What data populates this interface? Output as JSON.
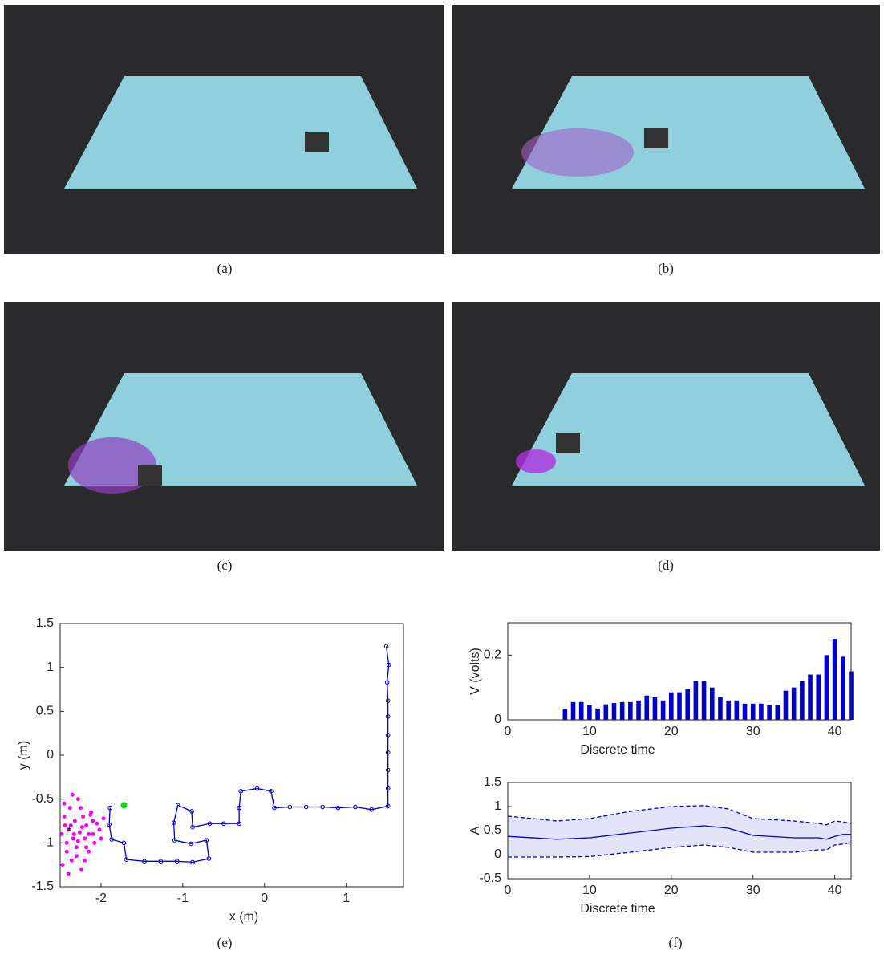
{
  "captions": [
    "(a)",
    "(b)",
    "(c)",
    "(d)",
    "(e)",
    "(f)"
  ],
  "chart_data": [
    {
      "type": "line",
      "x_label": "x (m)",
      "y_label": "y (m)",
      "xlim": [
        -2.5,
        1.7
      ],
      "ylim": [
        -1.5,
        1.5
      ],
      "xticks": [
        -2,
        -1,
        0,
        1
      ],
      "yticks": [
        -1.5,
        -1,
        -0.5,
        0,
        0.5,
        1,
        1.5
      ],
      "series": [
        {
          "style": "dots",
          "color": "#ff00ff",
          "x": [
            -2.48,
            -2.45,
            -2.42,
            -2.4,
            -2.38,
            -2.36,
            -2.34,
            -2.32,
            -2.3,
            -2.28,
            -2.26,
            -2.24,
            -2.22,
            -2.2,
            -2.18,
            -2.15,
            -2.12,
            -2.1,
            -2.08,
            -2.05,
            -2.02,
            -2.0,
            -1.97,
            -2.45,
            -2.4,
            -2.35,
            -2.3,
            -2.25,
            -2.2,
            -2.15,
            -2.1,
            -2.42,
            -2.37,
            -2.33,
            -2.28,
            -2.23,
            -2.18,
            -2.13,
            -2.47,
            -2.44
          ],
          "values": [
            -0.9,
            -0.7,
            -1.1,
            -0.85,
            -0.6,
            -1.2,
            -0.95,
            -0.75,
            -1.05,
            -0.5,
            -0.88,
            -1.3,
            -0.7,
            -0.95,
            -0.8,
            -1.1,
            -0.65,
            -0.9,
            -1.0,
            -0.78,
            -0.85,
            -0.95,
            -0.72,
            -0.55,
            -1.35,
            -0.45,
            -1.15,
            -0.6,
            -1.2,
            -0.9,
            -0.75,
            -1.0,
            -0.8,
            -0.9,
            -0.98,
            -0.82,
            -1.05,
            -0.68,
            -1.25,
            -0.8
          ]
        },
        {
          "style": "line-marker",
          "color": "#0000cc",
          "x": [
            1.49,
            1.52,
            1.5,
            1.51,
            1.51,
            1.51,
            1.51,
            1.51,
            1.51,
            1.51,
            1.31,
            1.11,
            0.9,
            0.71,
            0.51,
            0.31,
            0.12,
            0.08,
            -0.09,
            -0.29,
            -0.31,
            -0.31,
            -0.5,
            -0.67,
            -0.88,
            -0.89,
            -1.06,
            -1.11,
            -1.1,
            -0.9,
            -0.71,
            -0.68,
            -0.88,
            -1.07,
            -1.27,
            -1.47,
            -1.69,
            -1.72,
            -1.87,
            -1.9,
            -1.89
          ],
          "values": [
            1.24,
            1.03,
            0.83,
            0.62,
            0.44,
            0.23,
            0.03,
            -0.17,
            -0.38,
            -0.58,
            -0.62,
            -0.59,
            -0.6,
            -0.59,
            -0.59,
            -0.59,
            -0.6,
            -0.41,
            -0.38,
            -0.41,
            -0.6,
            -0.78,
            -0.78,
            -0.78,
            -0.82,
            -0.64,
            -0.57,
            -0.77,
            -0.97,
            -1.01,
            -0.97,
            -1.18,
            -1.22,
            -1.21,
            -1.21,
            -1.21,
            -1.19,
            -1.0,
            -0.96,
            -0.79,
            -0.6
          ]
        },
        {
          "style": "star",
          "color": "#000000",
          "x": [
            -2.39
          ],
          "values": [
            -0.86
          ]
        },
        {
          "style": "dot",
          "color": "#00dd00",
          "x": [
            -1.72
          ],
          "values": [
            -0.57
          ]
        }
      ]
    },
    {
      "type": "bar",
      "y_label": "V (volts)",
      "x_label": "Discrete time",
      "color": "#0000cc",
      "xlim": [
        0,
        42
      ],
      "ylim": [
        0,
        0.3
      ],
      "xticks": [
        0,
        10,
        20,
        30,
        40
      ],
      "yticks": [
        0,
        0.2
      ],
      "x": [
        1,
        2,
        3,
        4,
        5,
        6,
        7,
        8,
        9,
        10,
        11,
        12,
        13,
        14,
        15,
        16,
        17,
        18,
        19,
        20,
        21,
        22,
        23,
        24,
        25,
        26,
        27,
        28,
        29,
        30,
        31,
        32,
        33,
        34,
        35,
        36,
        37,
        38,
        39,
        40,
        41,
        42
      ],
      "values": [
        0,
        0,
        0,
        0,
        0,
        0,
        0.035,
        0.055,
        0.055,
        0.045,
        0.035,
        0.048,
        0.052,
        0.055,
        0.055,
        0.06,
        0.075,
        0.07,
        0.06,
        0.085,
        0.085,
        0.095,
        0.12,
        0.12,
        0.1,
        0.07,
        0.06,
        0.06,
        0.05,
        0.05,
        0.05,
        0.045,
        0.045,
        0.09,
        0.1,
        0.12,
        0.14,
        0.14,
        0.2,
        0.25,
        0.195,
        0.15
      ]
    },
    {
      "type": "line",
      "y_label": "A",
      "x_label": "Discrete time",
      "band_color": "#e4e4f8",
      "xlim": [
        0,
        42
      ],
      "ylim": [
        -0.5,
        1.5
      ],
      "xticks": [
        0,
        10,
        20,
        30,
        40
      ],
      "yticks": [
        -0.5,
        0,
        0.5,
        1,
        1.5
      ],
      "x": [
        0,
        6,
        10,
        15,
        20,
        24,
        27,
        30,
        35,
        38,
        39,
        40,
        41,
        42
      ],
      "series": [
        {
          "style": "solid",
          "color": "#0000cc",
          "values": [
            0.38,
            0.32,
            0.35,
            0.45,
            0.55,
            0.6,
            0.55,
            0.4,
            0.35,
            0.35,
            0.32,
            0.38,
            0.42,
            0.42
          ]
        },
        {
          "style": "dashed",
          "color": "#0000cc",
          "values": [
            0.8,
            0.7,
            0.75,
            0.9,
            1.0,
            1.02,
            0.95,
            0.75,
            0.7,
            0.65,
            0.62,
            0.7,
            0.68,
            0.65
          ]
        },
        {
          "style": "dashed",
          "color": "#0000cc",
          "values": [
            -0.05,
            -0.05,
            -0.04,
            0.05,
            0.15,
            0.2,
            0.15,
            0.05,
            0.05,
            0.1,
            0.1,
            0.2,
            0.22,
            0.25
          ]
        }
      ]
    }
  ]
}
